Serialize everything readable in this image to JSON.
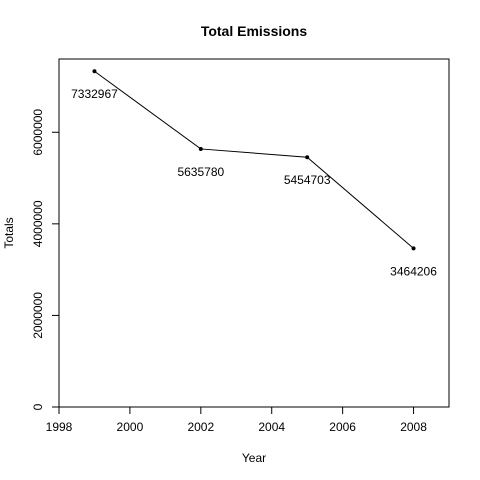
{
  "chart_data": {
    "type": "line",
    "title": "Total Emissions",
    "xlabel": "Year",
    "ylabel": "Totals",
    "x": [
      1999,
      2002,
      2005,
      2008
    ],
    "series": [
      {
        "values": [
          7332967,
          5635780,
          5454703,
          3464206
        ]
      }
    ],
    "data_labels": [
      "7332967",
      "5635780",
      "5454703",
      "3464206"
    ],
    "xlim": [
      1998,
      2009
    ],
    "ylim": [
      0,
      7600000
    ],
    "xticks": [
      1998,
      2000,
      2002,
      2004,
      2006,
      2008
    ],
    "xtick_labels": [
      "1998",
      "2000",
      "2002",
      "2004",
      "2006",
      "2008"
    ],
    "yticks": [
      0,
      2000000,
      4000000,
      6000000
    ],
    "ytick_labels": [
      "0",
      "2000000",
      "4000000",
      "6000000"
    ],
    "grid": false,
    "line_color": "#000000",
    "marker": "filled-circle"
  }
}
